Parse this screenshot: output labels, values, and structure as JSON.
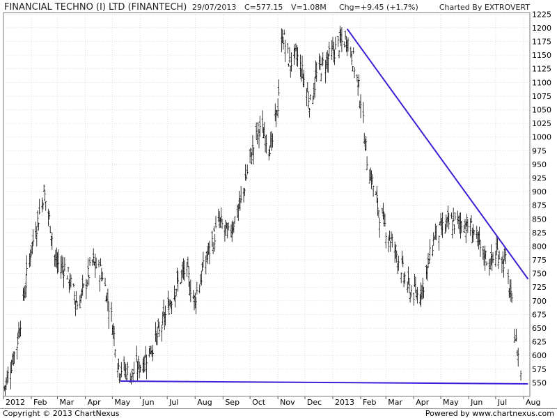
{
  "header": {
    "title": "FINANCIAL TECHNO (I) LTD (FINANTECH)",
    "date": "29/07/2013",
    "close": "C=577.15",
    "volume": "V=1.08M",
    "change": "Chg=+9.45 (+1.7%)",
    "credit": "Charted By EXTROVERT"
  },
  "footer": {
    "copyright": "Copyright © 2013 ChartNexus",
    "powered": "Powered by www.chartnexus.com"
  },
  "colors": {
    "price_bars": "#000000",
    "trendline": "#3a1fd6",
    "grid": "#c8c8c8",
    "frame": "#7a7a7a"
  },
  "chart_data": {
    "type": "ohlc-bar",
    "x_axis_labels": [
      "2012",
      "Feb",
      "Mar",
      "Apr",
      "May",
      "Jun",
      "Jul",
      "Aug",
      "Sep",
      "Oct",
      "Nov",
      "Dec",
      "2013",
      "Feb",
      "Mar",
      "Apr",
      "May",
      "Jun",
      "Jul",
      "Aug"
    ],
    "y_axis_ticks": [
      550,
      575,
      600,
      625,
      650,
      675,
      700,
      725,
      750,
      775,
      800,
      825,
      850,
      875,
      900,
      925,
      950,
      975,
      1000,
      1025,
      1050,
      1075,
      1100,
      1125,
      1150,
      1175,
      1200,
      1225
    ],
    "ylim": [
      525,
      1228
    ],
    "grid": true,
    "price_path": [
      {
        "date": "2012-01-02",
        "value": 540
      },
      {
        "date": "2012-01-16",
        "value": 620
      },
      {
        "date": "2012-01-31",
        "value": 790
      },
      {
        "date": "2012-02-10",
        "value": 860
      },
      {
        "date": "2012-02-15",
        "value": 900
      },
      {
        "date": "2012-02-22",
        "value": 840
      },
      {
        "date": "2012-02-28",
        "value": 770
      },
      {
        "date": "2012-03-10",
        "value": 760
      },
      {
        "date": "2012-03-24",
        "value": 690
      },
      {
        "date": "2012-04-09",
        "value": 770
      },
      {
        "date": "2012-04-20",
        "value": 750
      },
      {
        "date": "2012-05-01",
        "value": 660
      },
      {
        "date": "2012-05-08",
        "value": 580
      },
      {
        "date": "2012-05-22",
        "value": 565
      },
      {
        "date": "2012-06-05",
        "value": 590
      },
      {
        "date": "2012-06-22",
        "value": 640
      },
      {
        "date": "2012-07-09",
        "value": 720
      },
      {
        "date": "2012-07-22",
        "value": 760
      },
      {
        "date": "2012-07-31",
        "value": 700
      },
      {
        "date": "2012-08-14",
        "value": 780
      },
      {
        "date": "2012-08-28",
        "value": 845
      },
      {
        "date": "2012-09-07",
        "value": 820
      },
      {
        "date": "2012-09-21",
        "value": 880
      },
      {
        "date": "2012-10-01",
        "value": 960
      },
      {
        "date": "2012-10-12",
        "value": 1020
      },
      {
        "date": "2012-10-25",
        "value": 980
      },
      {
        "date": "2012-11-01",
        "value": 1060
      },
      {
        "date": "2012-11-06",
        "value": 1190
      },
      {
        "date": "2012-11-14",
        "value": 1135
      },
      {
        "date": "2012-11-22",
        "value": 1150
      },
      {
        "date": "2012-12-01",
        "value": 1100
      },
      {
        "date": "2012-12-07",
        "value": 1060
      },
      {
        "date": "2012-12-15",
        "value": 1120
      },
      {
        "date": "2012-12-30",
        "value": 1150
      },
      {
        "date": "2013-01-08",
        "value": 1170
      },
      {
        "date": "2013-01-17",
        "value": 1180
      },
      {
        "date": "2013-01-24",
        "value": 1140
      },
      {
        "date": "2013-02-01",
        "value": 1070
      },
      {
        "date": "2013-02-08",
        "value": 960
      },
      {
        "date": "2013-02-22",
        "value": 860
      },
      {
        "date": "2013-03-12",
        "value": 790
      },
      {
        "date": "2013-03-27",
        "value": 720
      },
      {
        "date": "2013-04-06",
        "value": 710
      },
      {
        "date": "2013-04-14",
        "value": 740
      },
      {
        "date": "2013-04-24",
        "value": 820
      },
      {
        "date": "2013-05-09",
        "value": 840
      },
      {
        "date": "2013-05-24",
        "value": 845
      },
      {
        "date": "2013-06-06",
        "value": 830
      },
      {
        "date": "2013-06-15",
        "value": 790
      },
      {
        "date": "2013-06-26",
        "value": 770
      },
      {
        "date": "2013-07-03",
        "value": 790
      },
      {
        "date": "2013-07-12",
        "value": 770
      },
      {
        "date": "2013-07-19",
        "value": 690
      },
      {
        "date": "2013-07-24",
        "value": 620
      },
      {
        "date": "2013-07-29",
        "value": 570
      }
    ],
    "trendlines": [
      {
        "from": {
          "date": "2012-05-10",
          "value": 553
        },
        "to": {
          "date": "2013-08-06",
          "value": 548
        }
      },
      {
        "from": {
          "date": "2013-01-17",
          "value": 1198
        },
        "to": {
          "date": "2013-08-06",
          "value": 740
        }
      }
    ]
  }
}
